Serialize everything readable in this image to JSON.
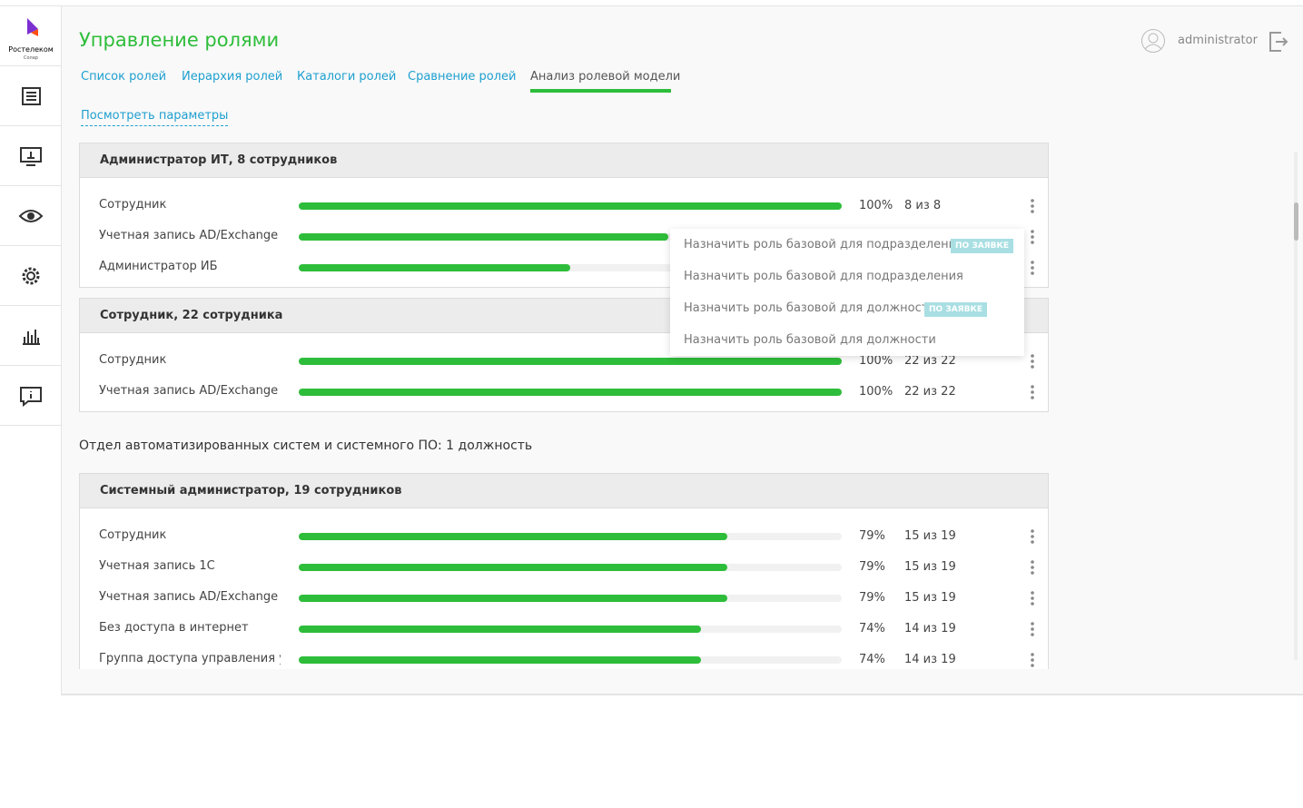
{
  "logo": "Ростелеком",
  "logo_sub": "Солар",
  "header": {
    "title": "Управление ролями",
    "user": "administrator"
  },
  "tabs": [
    {
      "label": "Список ролей"
    },
    {
      "label": "Иерархия ролей"
    },
    {
      "label": "Каталоги ролей"
    },
    {
      "label": "Сравнение ролей"
    },
    {
      "label": "Анализ ролевой модели",
      "active": true
    }
  ],
  "params_link": "Посмотреть параметры",
  "groups": [
    {
      "title": "Администратор ИТ, 8 сотрудников",
      "rows": [
        {
          "name": "Сотрудник",
          "value": 100,
          "value_label": "100%",
          "count": "8 из 8"
        },
        {
          "name": "Учетная запись AD/Exchange",
          "value": 68
        },
        {
          "name": "Администратор ИБ",
          "value": 50
        }
      ]
    },
    {
      "title": "Сотрудник, 22 сотрудника",
      "rows": [
        {
          "name": "Сотрудник",
          "value": 100,
          "value_label": "100%",
          "count": "22 из 22"
        },
        {
          "name": "Учетная запись AD/Exchange",
          "value": 100,
          "value_label": "100%",
          "count": "22 из 22"
        }
      ]
    }
  ],
  "department": {
    "title": "Отдел автоматизированных систем и системного ПО: 1 должность",
    "groups": [
      {
        "title": "Системный администратор, 19 сотрудников",
        "rows": [
          {
            "name": "Сотрудник",
            "value": 79,
            "value_label": "79%",
            "count": "15 из 19"
          },
          {
            "name": "Учетная запись 1С",
            "value": 79,
            "value_label": "79%",
            "count": "15 из 19"
          },
          {
            "name": "Учетная запись AD/Exchange",
            "value": 79,
            "value_label": "79%",
            "count": "15 из 19"
          },
          {
            "name": "Без доступа в интернет",
            "value": 74,
            "value_label": "74%",
            "count": "14 из 19"
          },
          {
            "name": "Группа доступа управления у...",
            "value": 74,
            "value_label": "74%",
            "count": "14 из 19"
          }
        ]
      }
    ]
  },
  "menu": {
    "items": [
      {
        "label": "Назначить роль базовой для подразделения",
        "tag": "ПО ЗАЯВКЕ"
      },
      {
        "label": "Назначить роль базовой для подразделения"
      },
      {
        "label": "Назначить роль базовой для должности",
        "tag": "ПО ЗАЯВКЕ"
      },
      {
        "label": "Назначить роль базовой для должности"
      }
    ]
  }
}
